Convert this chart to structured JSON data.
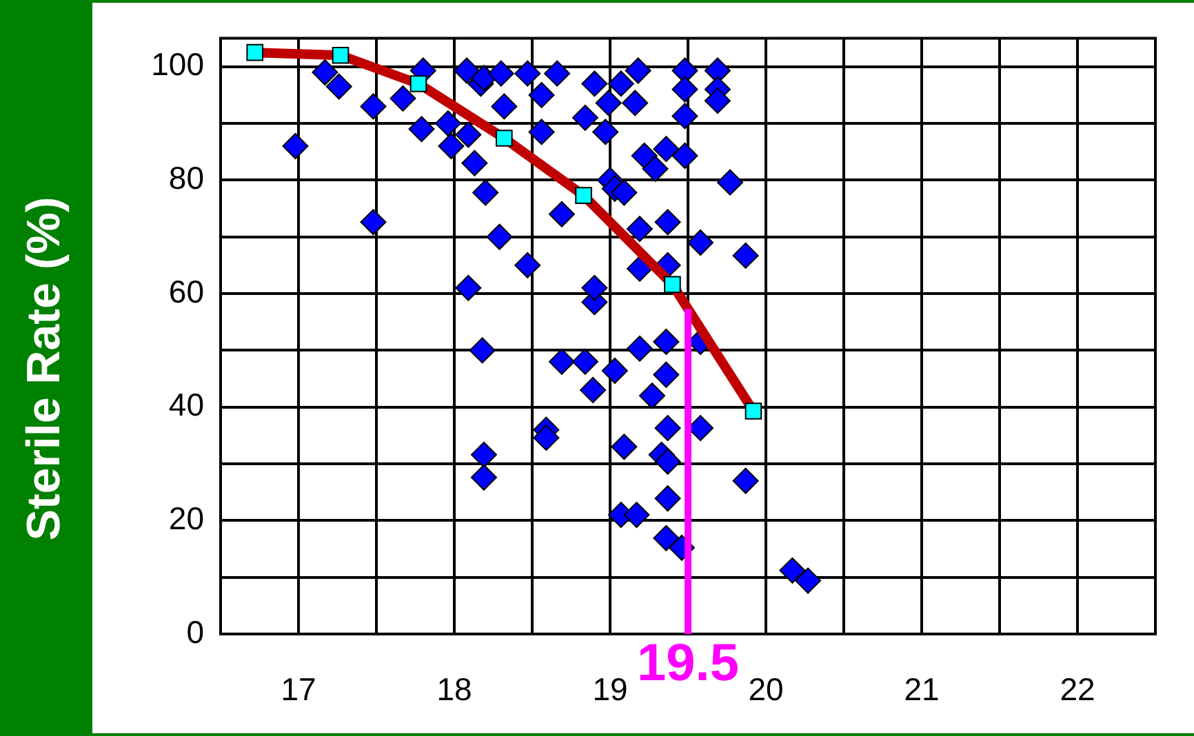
{
  "chart_data": {
    "type": "scatter",
    "ylabel": "Sterile Rate (%)",
    "xlim": [
      16.5,
      22.5
    ],
    "xticks": [
      {
        "value": 16.5,
        "label": null
      },
      17,
      {
        "value": 17.5,
        "label": null
      },
      18,
      {
        "value": 18.5,
        "label": null
      },
      19,
      {
        "value": 19.5,
        "label": null
      },
      20,
      {
        "value": 20.5,
        "label": null
      },
      21,
      {
        "value": 21.5,
        "label": null
      },
      22,
      {
        "value": 22.5,
        "label": null
      }
    ],
    "ylim": [
      0,
      105
    ],
    "yticks": [
      0,
      {
        "value": 10,
        "label": null
      },
      20,
      {
        "value": 30,
        "label": null
      },
      40,
      {
        "value": 50,
        "label": null
      },
      60,
      {
        "value": 70,
        "label": null
      },
      80,
      {
        "value": 90,
        "label": null
      },
      100
    ],
    "grid": true,
    "legend": false,
    "series": [
      {
        "type": "scatter",
        "marker": "diamond",
        "color": "#0000ff",
        "x": [
          16.98,
          17.17,
          17.26,
          17.48,
          17.48,
          17.67,
          17.79,
          17.8,
          17.96,
          17.98,
          18.09,
          18.13,
          18.08,
          18.17,
          18.19,
          18.2,
          18.09,
          18.18,
          18.19,
          18.19,
          18.29,
          18.3,
          18.32,
          18.47,
          18.47,
          18.56,
          18.56,
          18.59,
          18.59,
          18.66,
          18.69,
          18.69,
          18.84,
          18.84,
          18.9,
          18.89,
          18.9,
          18.9,
          18.99,
          18.97,
          19.0,
          19.03,
          19.03,
          19.07,
          19.09,
          19.09,
          19.07,
          19.17,
          19.19,
          19.19,
          19.19,
          19.22,
          19.27,
          19.29,
          19.33,
          19.36,
          19.36,
          19.36,
          19.37,
          19.37,
          19.36,
          19.37,
          19.37,
          19.37,
          19.46,
          19.48,
          19.48,
          19.48,
          19.48,
          19.58,
          19.58,
          19.58,
          19.69,
          19.69,
          19.69,
          19.77,
          19.87,
          19.87,
          20.17,
          20.27,
          19.18,
          19.16
        ],
        "values": [
          86,
          99,
          96.5,
          93,
          72.6,
          94.4,
          89,
          99.3,
          90,
          86,
          88,
          83,
          99.3,
          97,
          98,
          77.8,
          61,
          50,
          31.6,
          27.6,
          70,
          98.8,
          93,
          98.8,
          65,
          88.5,
          95,
          36,
          34.6,
          98.8,
          74,
          48,
          48,
          91,
          97,
          43,
          58.5,
          61,
          93.6,
          88.5,
          80,
          78.5,
          46.4,
          97,
          77.8,
          33,
          21,
          21,
          71.4,
          64.4,
          50.3,
          84.3,
          42,
          82,
          31.6,
          51.5,
          45.7,
          85.5,
          72.6,
          65,
          16.9,
          23.9,
          30.4,
          36.3,
          15.2,
          99.3,
          96,
          91.3,
          84.3,
          69,
          51.5,
          36.3,
          99.3,
          96,
          94,
          79.6,
          66.7,
          27,
          11.2,
          9.4,
          99.3,
          93.6
        ]
      },
      {
        "type": "line",
        "marker": "square",
        "color": "#c00000",
        "colors": [
          "#00ffff",
          "#00ffff",
          "#00ffff",
          "#00ffff",
          "#00ffff",
          "#00ffff",
          "#00ffff"
        ],
        "x": [
          16.72,
          17.27,
          17.77,
          18.32,
          18.83,
          19.4,
          19.92
        ],
        "values": [
          102.5,
          102,
          97,
          87.4,
          77.3,
          61.6,
          39.3
        ]
      }
    ],
    "ref_lines": [
      {
        "axis": "x",
        "value": 19.5,
        "label": "19.5",
        "color": "#ff00ff"
      }
    ]
  }
}
